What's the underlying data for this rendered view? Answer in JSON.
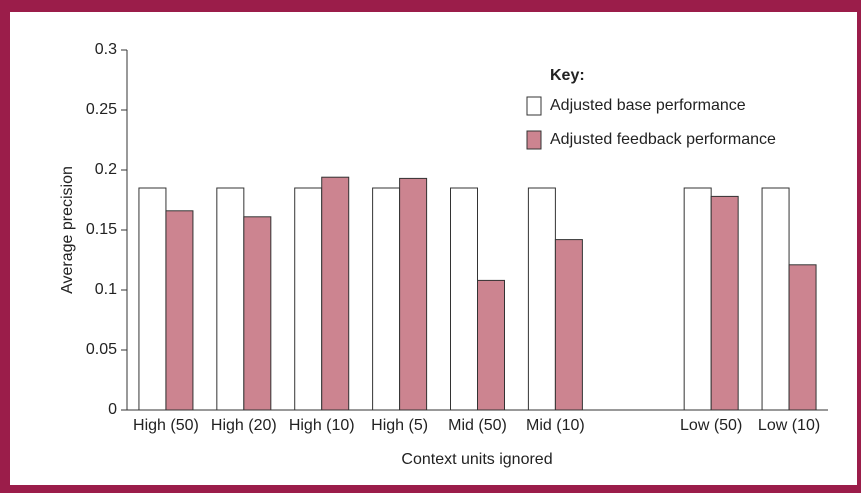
{
  "chart_data": {
    "type": "bar",
    "y_label": "Average precision",
    "x_label": "Context units ignored",
    "legend_title": "Key:",
    "categories": [
      "High (50)",
      "High (20)",
      "High (10)",
      "High (5)",
      "Mid (50)",
      "Mid (10)",
      null,
      "Low (50)",
      "Low (10)"
    ],
    "series": [
      {
        "name": "Adjusted base performance",
        "color": "#ffffff",
        "values": [
          0.185,
          0.185,
          0.185,
          0.185,
          0.185,
          0.185,
          null,
          0.185,
          0.185
        ]
      },
      {
        "name": "Adjusted feedback performance",
        "color": "#cc8490",
        "values": [
          0.166,
          0.161,
          0.194,
          0.193,
          0.108,
          0.142,
          null,
          0.178,
          0.121
        ]
      }
    ],
    "ylim": [
      0,
      0.3
    ],
    "yticks": [
      0,
      0.05,
      0.1,
      0.15,
      0.2,
      0.25,
      0.3
    ]
  }
}
